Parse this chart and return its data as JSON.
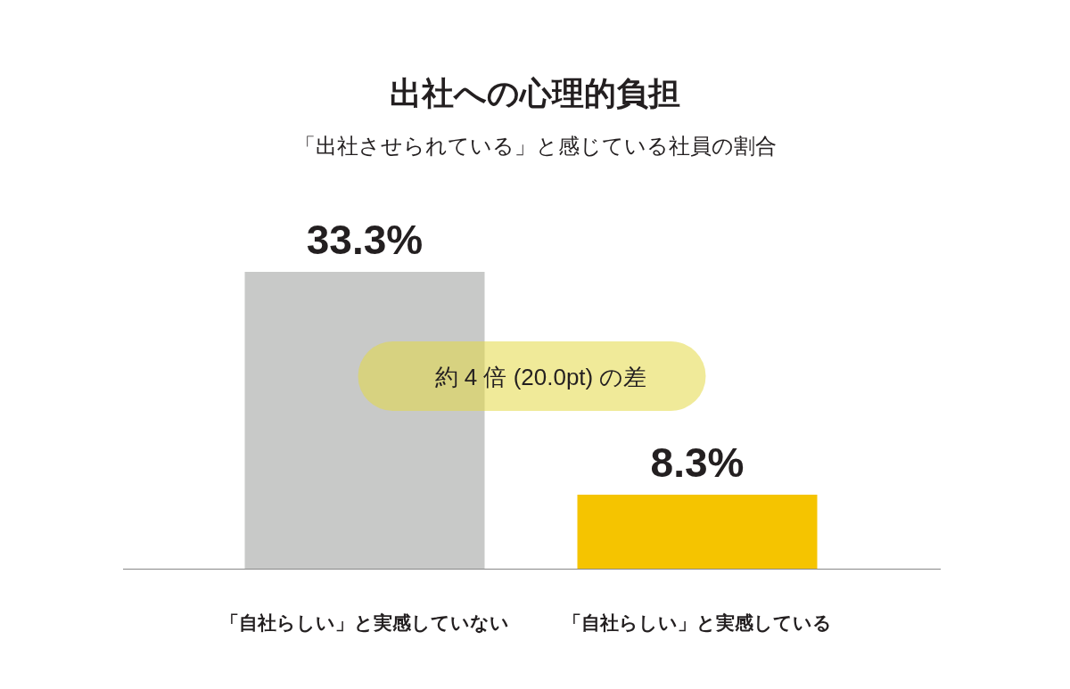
{
  "chart_data": {
    "type": "bar",
    "title": "出社への心理的負担",
    "subtitle": "「出社させられている」と感じている社員の割合",
    "categories": [
      "「自社らしい」と実感していない",
      "「自社らしい」と実感している"
    ],
    "values": [
      33.3,
      8.3
    ],
    "colors": [
      "#c8c9c8",
      "#f5c400"
    ],
    "value_labels": [
      "33.3%",
      "8.3%"
    ],
    "annotations": [
      "約 4 倍 (20.0pt) の差"
    ]
  }
}
